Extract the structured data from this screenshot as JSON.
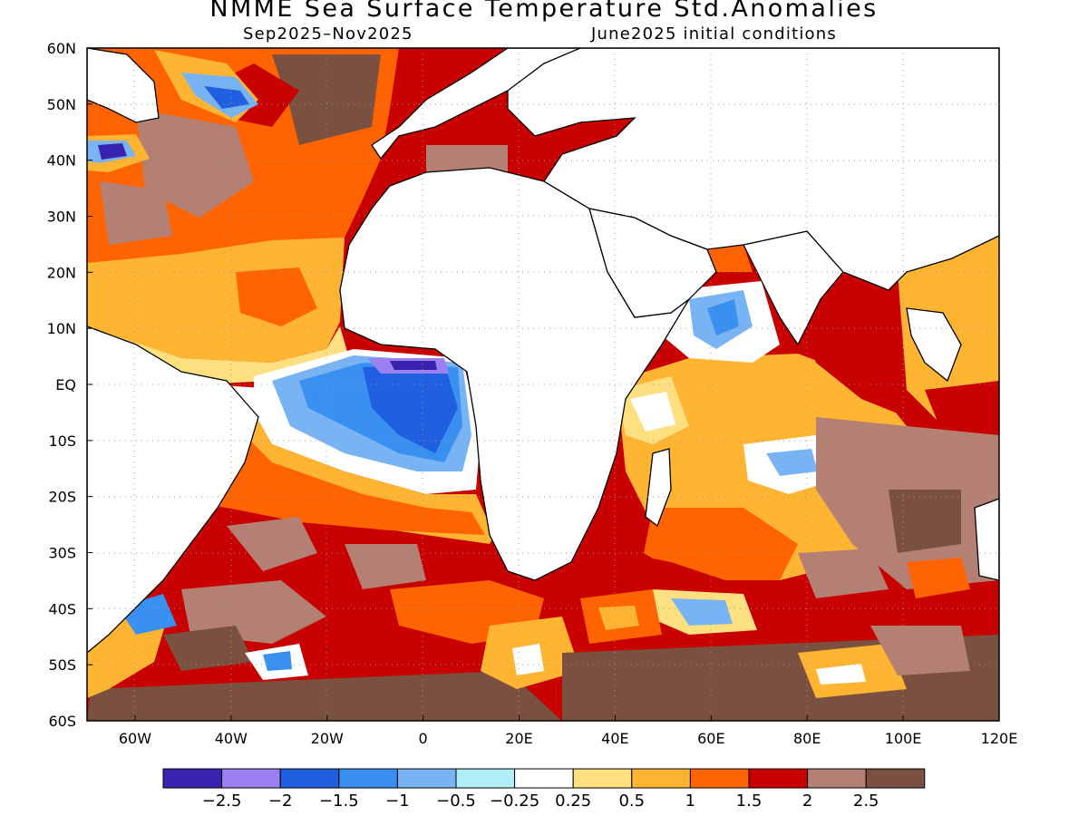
{
  "title": "NMME Sea Surface Temperature Std.Anomalies",
  "subtitle_left": "Sep2025–Nov2025",
  "subtitle_right": "June2025 initial conditions",
  "axes": {
    "lon_labels": [
      "60W",
      "40W",
      "20W",
      "0",
      "20E",
      "40E",
      "60E",
      "80E",
      "100E",
      "120E"
    ],
    "lon_values": [
      -60,
      -40,
      -20,
      0,
      20,
      40,
      60,
      80,
      100,
      120
    ],
    "lat_labels": [
      "60N",
      "50N",
      "40N",
      "30N",
      "20N",
      "10N",
      "EQ",
      "10S",
      "20S",
      "30S",
      "40S",
      "50S",
      "60S"
    ],
    "lat_values": [
      60,
      50,
      40,
      30,
      20,
      10,
      0,
      -10,
      -20,
      -30,
      -40,
      -50,
      -60
    ],
    "lon_range": [
      -70,
      120
    ],
    "lat_range": [
      -60,
      60
    ],
    "grid": "dotted"
  },
  "colorbar": {
    "colors": [
      "#3a22b0",
      "#9a80f0",
      "#2060e0",
      "#3a90f0",
      "#78b4f4",
      "#b0eef8",
      "#ffffff",
      "#ffe080",
      "#ffb432",
      "#ff6400",
      "#c80000",
      "#b48074",
      "#7a5040"
    ],
    "labels": [
      "−2.5",
      "−2",
      "−1.5",
      "−1",
      "−0.5",
      "−0.25",
      "0.25",
      "0.5",
      "1",
      "1.5",
      "2",
      "2.5"
    ]
  },
  "colors": {
    "land": "#ffffff",
    "coast": "#000000",
    "grid": "#999999"
  }
}
